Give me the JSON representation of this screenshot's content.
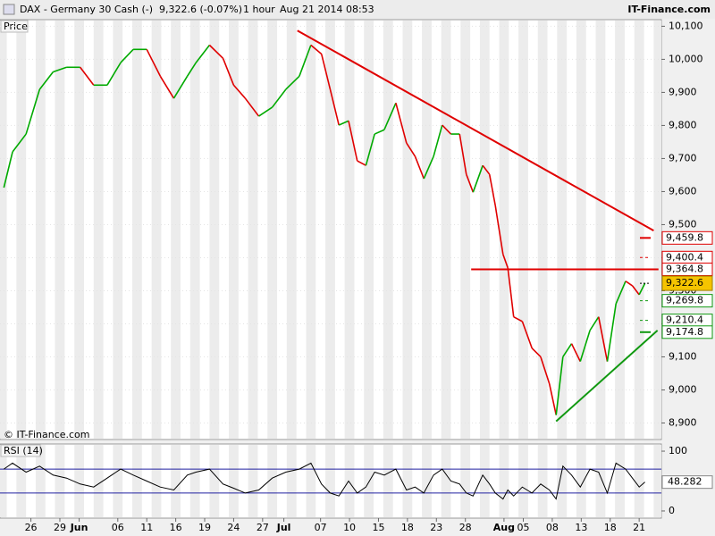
{
  "header": {
    "title": "DAX - Germany 30 Cash (-)",
    "quote": "9,322.6 (-0.07%)",
    "interval": "1 hour",
    "timestamp": "Aug 21 2014 08:53",
    "brand": "IT-Finance.com"
  },
  "chart_data": [
    {
      "type": "line",
      "label": "Price",
      "watermark": "© IT-Finance.com",
      "up_color": "#00aa00",
      "down_color": "#e00000",
      "x": [
        -2.8,
        -1.9,
        -0.5,
        0.9,
        2.3,
        3.7,
        5.1,
        6.5,
        7.9,
        9.3,
        10.6,
        12.0,
        13.4,
        14.8,
        16.2,
        17.1,
        18.5,
        19.9,
        21.0,
        22.2,
        23.6,
        25.0,
        26.4,
        27.8,
        29.0,
        30.1,
        31.0,
        31.9,
        32.9,
        33.8,
        34.7,
        35.6,
        36.6,
        37.8,
        38.9,
        39.8,
        40.7,
        41.7,
        42.6,
        43.5,
        44.4,
        45.1,
        45.8,
        46.8,
        47.5,
        48.1,
        48.9,
        49.4,
        50.0,
        50.9,
        51.9,
        52.8,
        53.7,
        54.4,
        55.1,
        56.0,
        56.9,
        57.9,
        58.8,
        59.7,
        60.6,
        61.6,
        62.3,
        63.0,
        63.6
      ],
      "values": [
        9612,
        9720,
        9774,
        9909,
        9962,
        9976,
        9976,
        9922,
        9922,
        9990,
        10030,
        10030,
        9949,
        9882,
        9949,
        9990,
        10043,
        10003,
        9922,
        9882,
        9828,
        9855,
        9909,
        9949,
        10043,
        10016,
        9909,
        9801,
        9814,
        9693,
        9679,
        9774,
        9787,
        9868,
        9747,
        9706,
        9639,
        9706,
        9801,
        9774,
        9774,
        9652,
        9598,
        9679,
        9652,
        9558,
        9410,
        9369,
        9221,
        9207,
        9126,
        9100,
        9019,
        8924,
        9100,
        9140,
        9086,
        9180,
        9221,
        9086,
        9261,
        9329,
        9315,
        9288,
        9322.6
      ],
      "xlim": [
        -3.2,
        65.3
      ],
      "ylim": [
        8850,
        10120
      ],
      "yticks": [
        {
          "value": 8900,
          "label": "8,900"
        },
        {
          "value": 9000,
          "label": "9,000"
        },
        {
          "value": 9100,
          "label": "9,100"
        },
        {
          "value": 9200,
          "label": "9,200"
        },
        {
          "value": 9300,
          "label": "9,300"
        },
        {
          "value": 9400,
          "label": "9,400"
        },
        {
          "value": 9500,
          "label": "9,500"
        },
        {
          "value": 9600,
          "label": "9,600"
        },
        {
          "value": 9700,
          "label": "9,700"
        },
        {
          "value": 9800,
          "label": "9,800"
        },
        {
          "value": 9900,
          "label": "9,900"
        },
        {
          "value": 10000,
          "label": "10,000"
        },
        {
          "value": 10100,
          "label": "10,100"
        }
      ],
      "trendlines": [
        {
          "color": "#e00000",
          "x": [
            27.6,
            64.5
          ],
          "y": [
            10087,
            9482
          ]
        },
        {
          "color": "#e00000",
          "x": [
            45.6,
            65.0
          ],
          "y": [
            9364.8,
            9364.8
          ]
        },
        {
          "color": "#119911",
          "x": [
            54.4,
            64.9
          ],
          "y": [
            8905,
            9180
          ]
        }
      ],
      "levels": [
        {
          "value": 9459.8,
          "label": "9,459.8",
          "color": "#e00000",
          "style": "solid"
        },
        {
          "value": 9400.4,
          "label": "9,400.4",
          "color": "#e00000",
          "style": "dashed"
        },
        {
          "value": 9364.8,
          "label": "9,364.8",
          "color": "#e00000",
          "style": "dashed"
        },
        {
          "value": 9269.8,
          "label": "9,269.8",
          "color": "#119911",
          "style": "dashed"
        },
        {
          "value": 9210.4,
          "label": "9,210.4",
          "color": "#119911",
          "style": "dashed"
        },
        {
          "value": 9174.8,
          "label": "9,174.8",
          "color": "#119911",
          "style": "solid"
        }
      ],
      "current": {
        "value": 9322.6,
        "label": "9,322.6",
        "color": "#f5c400"
      }
    },
    {
      "type": "line",
      "label": "RSI (14)",
      "color": "#000000",
      "level_color": "#2020a0",
      "x": [
        -2.8,
        -1.9,
        -0.5,
        0.9,
        2.3,
        3.7,
        5.1,
        6.5,
        7.9,
        9.3,
        10.6,
        12.0,
        13.4,
        14.8,
        16.2,
        17.1,
        18.5,
        19.9,
        21.0,
        22.2,
        23.6,
        25.0,
        26.4,
        27.8,
        29.0,
        30.1,
        31.0,
        31.9,
        32.9,
        33.8,
        34.7,
        35.6,
        36.6,
        37.8,
        38.9,
        39.8,
        40.7,
        41.7,
        42.6,
        43.5,
        44.4,
        45.1,
        45.8,
        46.8,
        47.5,
        48.1,
        48.9,
        49.4,
        50.0,
        50.9,
        51.9,
        52.8,
        53.7,
        54.4,
        55.1,
        56.0,
        56.9,
        57.9,
        58.8,
        59.7,
        60.6,
        61.6,
        62.3,
        63.0,
        63.6
      ],
      "values": [
        70,
        80,
        65,
        75,
        60,
        55,
        45,
        40,
        55,
        70,
        60,
        50,
        40,
        35,
        60,
        65,
        70,
        45,
        38,
        30,
        35,
        55,
        65,
        70,
        80,
        45,
        30,
        25,
        50,
        30,
        40,
        65,
        60,
        70,
        35,
        40,
        30,
        60,
        70,
        50,
        45,
        30,
        25,
        60,
        45,
        30,
        20,
        35,
        25,
        40,
        30,
        45,
        35,
        20,
        75,
        60,
        40,
        70,
        65,
        30,
        80,
        70,
        55,
        40,
        48.282
      ],
      "xlim": [
        -3.2,
        65.3
      ],
      "ylim": [
        -12,
        112
      ],
      "yticks": [
        0,
        100
      ],
      "levels": [
        30,
        70
      ],
      "current": {
        "value": 48.282,
        "label": "48.282"
      },
      "xticks": [
        {
          "value": 0,
          "label": "26"
        },
        {
          "value": 3,
          "label": "29"
        },
        {
          "value": 5,
          "label": "Jun"
        },
        {
          "value": 9,
          "label": "06"
        },
        {
          "value": 12,
          "label": "11"
        },
        {
          "value": 15,
          "label": "16"
        },
        {
          "value": 18,
          "label": "19"
        },
        {
          "value": 21,
          "label": "24"
        },
        {
          "value": 24,
          "label": "27"
        },
        {
          "value": 26.2,
          "label": "Jul"
        },
        {
          "value": 30,
          "label": "07"
        },
        {
          "value": 33,
          "label": "10"
        },
        {
          "value": 36,
          "label": "15"
        },
        {
          "value": 39,
          "label": "18"
        },
        {
          "value": 42,
          "label": "23"
        },
        {
          "value": 45,
          "label": "28"
        },
        {
          "value": 49,
          "label": "Aug"
        },
        {
          "value": 51,
          "label": "05"
        },
        {
          "value": 54,
          "label": "08"
        },
        {
          "value": 57,
          "label": "13"
        },
        {
          "value": 60,
          "label": "18"
        },
        {
          "value": 63,
          "label": "21"
        }
      ]
    }
  ]
}
